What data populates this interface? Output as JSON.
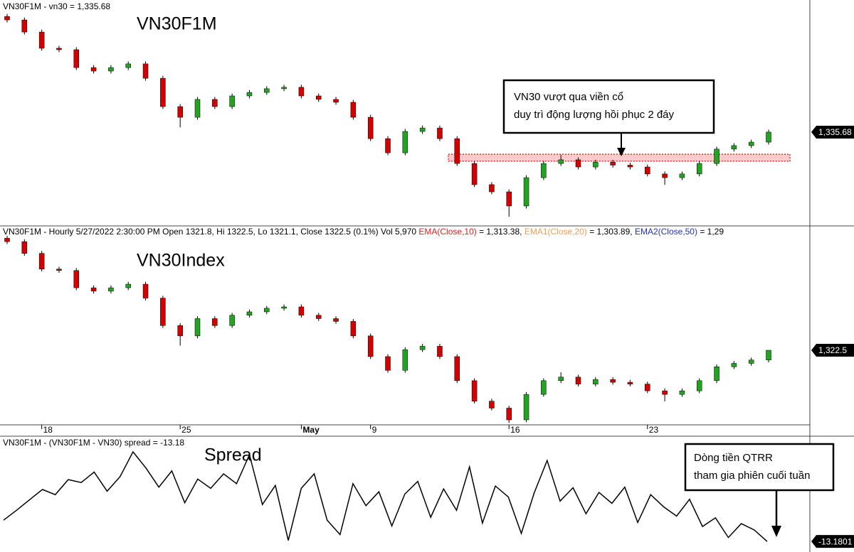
{
  "chart_data": [
    {
      "type": "candlestick",
      "header": "VN30F1M - vn30 = 1,335.68",
      "title": "VN30F1M",
      "up_color": "#22a322",
      "down_color": "#d40000",
      "ylim": [
        1290,
        1400
      ],
      "candles": [
        [
          1392.0,
          1393.2,
          1389.1,
          1390.3
        ],
        [
          1390.3,
          1391.5,
          1383.2,
          1384.4
        ],
        [
          1384.4,
          1385.6,
          1375.3,
          1376.5
        ],
        [
          1376.5,
          1377.7,
          1374.6,
          1375.8
        ],
        [
          1375.8,
          1377.0,
          1365.9,
          1367.1
        ],
        [
          1367.1,
          1368.3,
          1364.2,
          1365.4
        ],
        [
          1365.4,
          1368.3,
          1364.2,
          1367.1
        ],
        [
          1367.1,
          1370.1,
          1365.9,
          1368.9
        ],
        [
          1368.9,
          1370.1,
          1360.7,
          1361.9
        ],
        [
          1361.9,
          1363.1,
          1346.9,
          1348.1
        ],
        [
          1348.1,
          1349.3,
          1338.0,
          1342.9
        ],
        [
          1342.9,
          1352.8,
          1341.7,
          1351.6
        ],
        [
          1351.6,
          1352.8,
          1346.9,
          1348.1
        ],
        [
          1348.1,
          1354.5,
          1346.9,
          1353.3
        ],
        [
          1353.3,
          1356.2,
          1352.1,
          1355.0
        ],
        [
          1355.0,
          1358.0,
          1353.8,
          1356.8
        ],
        [
          1356.8,
          1358.7,
          1355.6,
          1357.5
        ],
        [
          1357.5,
          1358.7,
          1352.1,
          1353.3
        ],
        [
          1353.3,
          1354.5,
          1350.4,
          1351.6
        ],
        [
          1351.6,
          1352.8,
          1349.0,
          1350.2
        ],
        [
          1350.2,
          1351.4,
          1341.7,
          1342.9
        ],
        [
          1342.9,
          1344.1,
          1331.3,
          1332.5
        ],
        [
          1332.5,
          1333.7,
          1324.4,
          1325.6
        ],
        [
          1325.6,
          1337.2,
          1324.4,
          1336.0
        ],
        [
          1336.0,
          1338.9,
          1334.8,
          1337.7
        ],
        [
          1337.7,
          1338.9,
          1331.3,
          1332.5
        ],
        [
          1332.5,
          1333.7,
          1319.2,
          1320.4
        ],
        [
          1320.4,
          1321.6,
          1308.9,
          1310.1
        ],
        [
          1310.1,
          1311.3,
          1305.4,
          1306.6
        ],
        [
          1306.6,
          1307.8,
          1294.5,
          1299.7
        ],
        [
          1299.7,
          1314.7,
          1298.5,
          1313.5
        ],
        [
          1313.5,
          1321.6,
          1312.3,
          1320.4
        ],
        [
          1320.4,
          1324.6,
          1319.2,
          1322.2
        ],
        [
          1322.2,
          1323.4,
          1317.5,
          1318.7
        ],
        [
          1318.7,
          1322.2,
          1317.5,
          1321.0
        ],
        [
          1321.0,
          1322.2,
          1318.4,
          1319.6
        ],
        [
          1319.6,
          1320.8,
          1317.5,
          1318.7
        ],
        [
          1318.7,
          1319.9,
          1314.1,
          1315.3
        ],
        [
          1315.3,
          1316.5,
          1310.0,
          1313.5
        ],
        [
          1313.5,
          1316.5,
          1312.3,
          1315.3
        ],
        [
          1315.3,
          1321.6,
          1314.1,
          1320.4
        ],
        [
          1320.4,
          1328.6,
          1319.2,
          1327.4
        ],
        [
          1327.4,
          1330.3,
          1326.2,
          1329.1
        ],
        [
          1329.1,
          1332.0,
          1327.9,
          1330.8
        ],
        [
          1330.8,
          1336.9,
          1329.6,
          1335.68
        ]
      ],
      "last_value_label": "1,335.68",
      "resistance_zone": {
        "low": 1321.5,
        "high": 1324.9,
        "color": "#e83030"
      },
      "annotation": [
        "VN30 vượt qua viền cổ",
        "duy trì động lượng hồi phục 2 đáy"
      ]
    },
    {
      "type": "candlestick",
      "header": "VN30F1M - Hourly 5/27/2022 2:30:00 PM Open 1321.8, Hi 1322.5, Lo 1321.1, Close 1322.5 (0.1%) Vol 5,970",
      "indicators": [
        {
          "name": "EMA(Close,10)",
          "value": "= 1,313.38,",
          "color": "#e02020"
        },
        {
          "name": "EMA1(Close,20)",
          "value": "= 1,303.89,",
          "color": "#f0a050"
        },
        {
          "name": "EMA2(Close,50)",
          "value": "= 1,29",
          "color": "#2030c0"
        }
      ],
      "title": "VN30Index",
      "up_color": "#22a322",
      "down_color": "#d40000",
      "ylim": [
        1285,
        1385
      ],
      "categories": [
        null,
        null,
        "18",
        null,
        null,
        null,
        null,
        null,
        null,
        null,
        "25",
        null,
        null,
        null,
        null,
        null,
        null,
        "May",
        null,
        null,
        null,
        "9",
        null,
        null,
        null,
        null,
        null,
        null,
        null,
        "16",
        null,
        null,
        null,
        null,
        null,
        null,
        null,
        "23",
        null,
        null,
        null,
        null,
        null,
        null,
        null
      ],
      "candles": [
        [
          1378.8,
          1380.0,
          1375.9,
          1377.1
        ],
        [
          1377.1,
          1378.3,
          1370.0,
          1371.2
        ],
        [
          1371.2,
          1372.4,
          1362.1,
          1363.3
        ],
        [
          1363.3,
          1364.5,
          1361.4,
          1362.6
        ],
        [
          1362.6,
          1363.8,
          1352.7,
          1353.9
        ],
        [
          1353.9,
          1355.1,
          1351.0,
          1352.2
        ],
        [
          1352.2,
          1355.1,
          1351.0,
          1353.9
        ],
        [
          1353.9,
          1356.9,
          1352.7,
          1355.7
        ],
        [
          1355.7,
          1356.9,
          1347.5,
          1348.7
        ],
        [
          1348.7,
          1349.9,
          1333.7,
          1334.9
        ],
        [
          1334.9,
          1336.1,
          1324.8,
          1329.7
        ],
        [
          1329.7,
          1339.6,
          1328.5,
          1338.4
        ],
        [
          1338.4,
          1339.6,
          1333.7,
          1334.9
        ],
        [
          1334.9,
          1341.3,
          1333.7,
          1340.1
        ],
        [
          1340.1,
          1343.0,
          1338.9,
          1341.8
        ],
        [
          1341.8,
          1344.8,
          1340.6,
          1343.6
        ],
        [
          1343.6,
          1345.5,
          1342.4,
          1344.3
        ],
        [
          1344.3,
          1345.5,
          1338.9,
          1340.1
        ],
        [
          1340.1,
          1341.3,
          1337.2,
          1338.4
        ],
        [
          1338.4,
          1339.6,
          1335.8,
          1337.0
        ],
        [
          1337.0,
          1338.2,
          1328.5,
          1329.7
        ],
        [
          1329.7,
          1330.9,
          1318.1,
          1319.3
        ],
        [
          1319.3,
          1320.5,
          1311.2,
          1312.4
        ],
        [
          1312.4,
          1324.0,
          1311.2,
          1322.8
        ],
        [
          1322.8,
          1325.7,
          1321.6,
          1324.5
        ],
        [
          1324.5,
          1325.7,
          1318.1,
          1319.3
        ],
        [
          1319.3,
          1320.5,
          1306.0,
          1307.2
        ],
        [
          1307.2,
          1308.4,
          1295.7,
          1296.9
        ],
        [
          1296.9,
          1298.1,
          1292.2,
          1293.4
        ],
        [
          1293.4,
          1294.6,
          1286.0,
          1287.5
        ],
        [
          1287.5,
          1301.5,
          1286.3,
          1300.3
        ],
        [
          1300.3,
          1308.4,
          1299.1,
          1307.2
        ],
        [
          1307.2,
          1311.4,
          1306.0,
          1309.0
        ],
        [
          1309.0,
          1310.2,
          1304.3,
          1305.5
        ],
        [
          1305.5,
          1309.0,
          1304.3,
          1307.8
        ],
        [
          1307.8,
          1309.0,
          1305.2,
          1306.4
        ],
        [
          1306.4,
          1307.6,
          1304.3,
          1305.5
        ],
        [
          1305.5,
          1306.7,
          1300.9,
          1302.1
        ],
        [
          1302.1,
          1303.3,
          1296.8,
          1300.3
        ],
        [
          1300.3,
          1303.3,
          1299.1,
          1302.1
        ],
        [
          1302.1,
          1308.4,
          1300.9,
          1307.2
        ],
        [
          1307.2,
          1315.4,
          1306.0,
          1314.2
        ],
        [
          1314.2,
          1317.1,
          1313.0,
          1315.9
        ],
        [
          1315.9,
          1318.8,
          1314.7,
          1317.6
        ],
        [
          1317.6,
          1322.5,
          1316.4,
          1322.5
        ]
      ],
      "last_value_label": "1,322.5"
    },
    {
      "type": "line",
      "header": "VN30F1M - (VN30F1M - VN30) spread = -13.18",
      "title": "Spread",
      "color": "#000000",
      "ylim": [
        -15,
        5
      ],
      "values": [
        -9.5,
        -7.8,
        -6.0,
        -4.2,
        -5.1,
        -2.5,
        -3.0,
        -1.2,
        -4.5,
        -2.0,
        2.3,
        -0.5,
        -3.8,
        -1.0,
        -6.5,
        -2.4,
        -4.0,
        -1.5,
        -3.2,
        1.8,
        -6.8,
        -3.5,
        -13.0,
        -4.0,
        -1.5,
        -9.5,
        -12.0,
        -3.2,
        -7.0,
        -4.6,
        -10.5,
        -5.0,
        -2.8,
        -9.0,
        -4.1,
        -7.8,
        -0.3,
        -10.0,
        -3.6,
        -5.5,
        -11.8,
        -4.8,
        0.8,
        -6.2,
        -3.9,
        -8.4,
        -4.7,
        -6.6,
        -3.8,
        -9.9,
        -5.1,
        -7.2,
        -8.8,
        -5.9,
        -10.6,
        -9.1,
        -12.5,
        -10.1,
        -11.2,
        -13.18
      ],
      "last_value_label": "-13.1801",
      "annotation": [
        "Dòng tiền QTRR",
        "tham gia phiên cuối tuần"
      ]
    }
  ]
}
